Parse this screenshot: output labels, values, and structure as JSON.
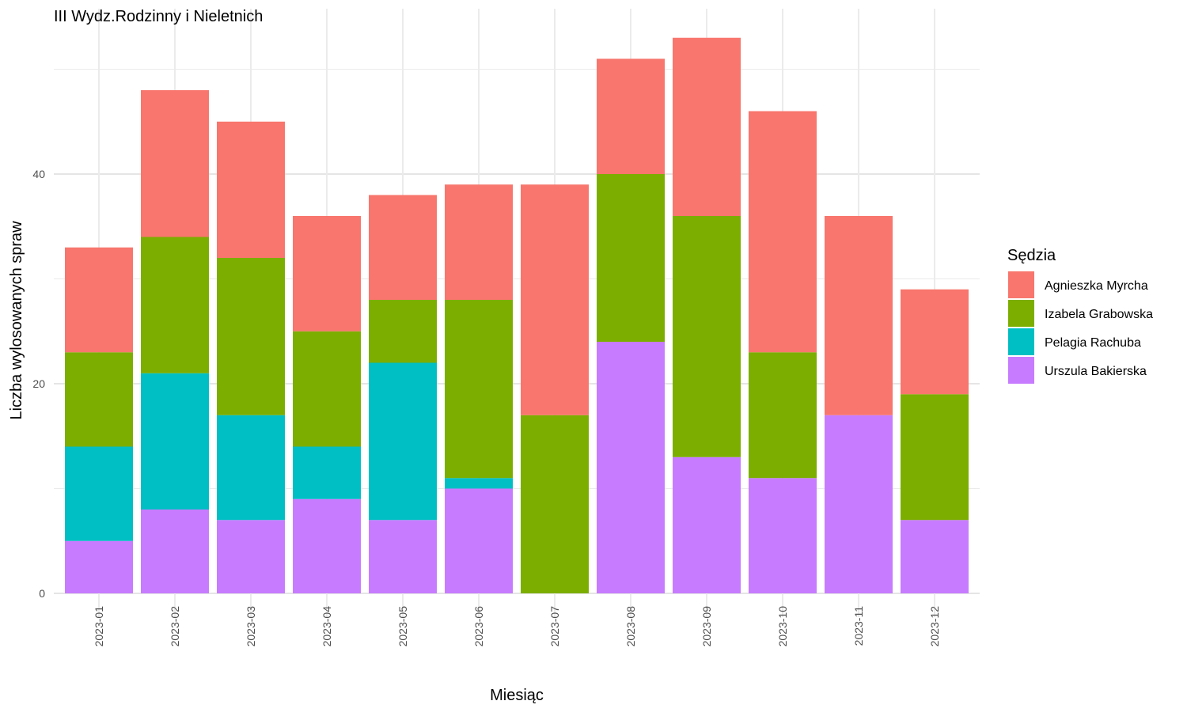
{
  "chart_data": {
    "type": "bar",
    "stacked": true,
    "title": "III Wydz.Rodzinny i Nieletnich",
    "xlabel": "Miesiąc",
    "ylabel": "Liczba wylosowanych spraw",
    "ylim": [
      0,
      54
    ],
    "yticks": [
      0,
      20,
      40
    ],
    "grid": true,
    "legend_position": "right",
    "legend_title": "Sędzia",
    "categories": [
      "2023-01",
      "2023-02",
      "2023-03",
      "2023-04",
      "2023-05",
      "2023-06",
      "2023-07",
      "2023-08",
      "2023-09",
      "2023-10",
      "2023-11",
      "2023-12"
    ],
    "series": [
      {
        "name": "Urszula Bakierska",
        "color": "#C77CFF",
        "values": [
          5,
          8,
          7,
          9,
          7,
          10,
          0,
          24,
          13,
          11,
          17,
          7
        ]
      },
      {
        "name": "Pelagia Rachuba",
        "color": "#00BFC4",
        "values": [
          9,
          13,
          10,
          5,
          15,
          1,
          0,
          0,
          0,
          0,
          0,
          0
        ]
      },
      {
        "name": "Izabela Grabowska",
        "color": "#7CAE00",
        "values": [
          9,
          13,
          15,
          11,
          6,
          17,
          17,
          16,
          23,
          12,
          0,
          12
        ]
      },
      {
        "name": "Agnieszka Myrcha",
        "color": "#F8766D",
        "values": [
          10,
          14,
          13,
          11,
          10,
          11,
          22,
          11,
          17,
          23,
          19,
          10
        ]
      }
    ],
    "legend_order": [
      "Agnieszka Myrcha",
      "Izabela Grabowska",
      "Pelagia Rachuba",
      "Urszula Bakierska"
    ]
  }
}
